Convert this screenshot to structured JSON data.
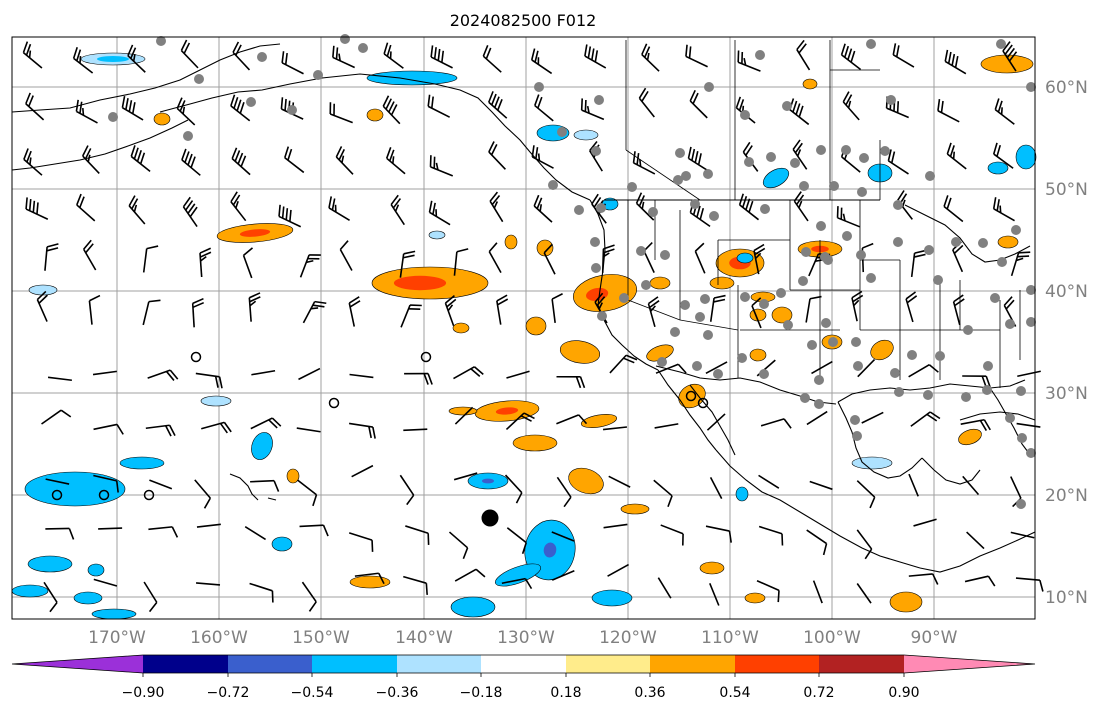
{
  "title": "2024082500 F012",
  "map": {
    "lon_labels": [
      "170°W",
      "160°W",
      "150°W",
      "140°W",
      "130°W",
      "120°W",
      "110°W",
      "100°W",
      "90°W"
    ],
    "lat_labels": [
      "60°N",
      "50°N",
      "40°N",
      "30°N",
      "20°N",
      "10°N"
    ],
    "grid": true,
    "coastline_color": "#000000",
    "grid_color": "#a0a0a0"
  },
  "colorbar": {
    "labels": [
      "−0.90",
      "−0.72",
      "−0.54",
      "−0.36",
      "−0.18",
      "0.18",
      "0.36",
      "0.54",
      "0.72",
      "0.90"
    ],
    "colors": [
      "#9b30d9",
      "#00008b",
      "#3a5fcd",
      "#00bfff",
      "#aee2ff",
      "#ffffff",
      "#ffec8b",
      "#ffa500",
      "#ff4000",
      "#b22222",
      "#ff8ab4"
    ]
  },
  "legend_colors": {
    "neg_light": "#aee2ff",
    "neg_mid": "#00bfff",
    "neg_dark": "#3a5fcd",
    "pos_light": "#ffec8b",
    "pos_mid": "#ffa500",
    "pos_dark": "#ff4000",
    "station_fill": "#808080",
    "barb_color": "#000000"
  }
}
